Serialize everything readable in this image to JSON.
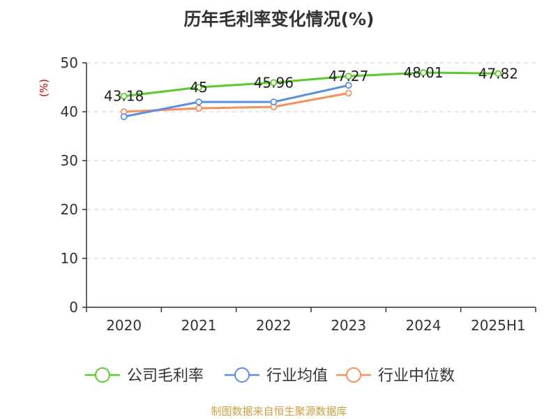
{
  "chart_data": {
    "type": "line",
    "title": "历年毛利率变化情况(%)",
    "ylabel": "(%)",
    "categories": [
      "2020",
      "2021",
      "2022",
      "2023",
      "2024",
      "2025H1"
    ],
    "ylim": [
      0,
      50
    ],
    "yticks": [
      0,
      10,
      20,
      30,
      40,
      50
    ],
    "grid": true,
    "legend_position": "bottom",
    "series": [
      {
        "name": "公司毛利率",
        "color": "#5cc92e",
        "values": [
          43.18,
          45,
          45.96,
          47.27,
          48.01,
          47.82
        ],
        "show_labels": true
      },
      {
        "name": "行业均值",
        "color": "#5b8ee0",
        "values": [
          39.0,
          42.0,
          42.0,
          45.4,
          null,
          null
        ],
        "show_labels": false
      },
      {
        "name": "行业中位数",
        "color": "#f4905a",
        "values": [
          40.0,
          40.7,
          41.0,
          43.8,
          null,
          null
        ],
        "show_labels": false
      }
    ]
  },
  "source_note": "制图数据来自恒生聚源数据库",
  "colors": {
    "unit_label": "#cc0000",
    "axis": "#333333",
    "grid": "#cccccc"
  }
}
